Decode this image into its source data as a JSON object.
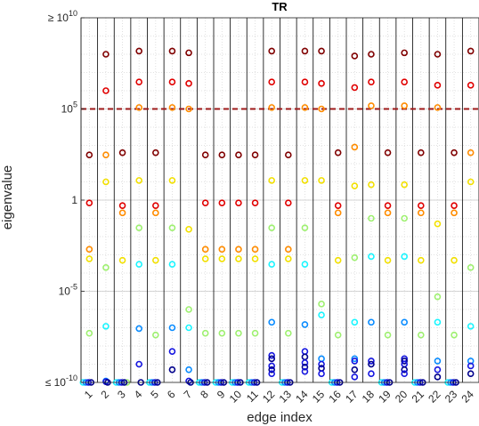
{
  "chart_data": {
    "type": "scatter",
    "title": "TR",
    "xlabel": "edge index",
    "ylabel": "eigenvalue",
    "y_scale": "log",
    "ylim": [
      1e-10,
      10000000000.0
    ],
    "y_ticks": [
      {
        "value": 10000000000.0,
        "prefix": "≥ 10",
        "exp": "10"
      },
      {
        "value": 100000.0,
        "prefix": "10",
        "exp": "5"
      },
      {
        "value": 1,
        "prefix": "1",
        "exp": ""
      },
      {
        "value": 1e-05,
        "prefix": "10",
        "exp": "-5"
      },
      {
        "value": 1e-10,
        "prefix": "≤ 10",
        "exp": "-10"
      }
    ],
    "categories": [
      "1",
      "2",
      "3",
      "4",
      "5",
      "6",
      "7",
      "8",
      "9",
      "10",
      "11",
      "12",
      "13",
      "14",
      "15",
      "16",
      "17",
      "18",
      "19",
      "20",
      "21",
      "22",
      "23",
      "24"
    ],
    "threshold": 100000.0,
    "grid": true,
    "colors": {
      "threshold_line": "#9e1a1a",
      "separator_line": "#000000",
      "grid_line": "#d9d9d9",
      "palette": [
        "#800000",
        "#e00000",
        "#ff8c00",
        "#f2e000",
        "#9ef070",
        "#19f5ff",
        "#0a8cff",
        "#1515e0",
        "#00008c"
      ]
    },
    "points": [
      {
        "edge": 1,
        "values": [
          {
            "v": 300.0,
            "c": 0
          },
          {
            "v": 0.7,
            "c": 1
          },
          {
            "v": 0.002,
            "c": 2
          },
          {
            "v": 0.0006,
            "c": 3
          },
          {
            "v": 5e-08,
            "c": 4
          },
          {
            "v": 1e-10,
            "c": 5
          },
          {
            "v": 1e-10,
            "c": 6
          },
          {
            "v": 1e-10,
            "c": 7
          },
          {
            "v": 1e-10,
            "c": 8
          }
        ]
      },
      {
        "edge": 2,
        "values": [
          {
            "v": 100000000.0,
            "c": 0
          },
          {
            "v": 1000000.0,
            "c": 1
          },
          {
            "v": 300.0,
            "c": 2
          },
          {
            "v": 10,
            "c": 3
          },
          {
            "v": 0.0002,
            "c": 4
          },
          {
            "v": 1.2e-07,
            "c": 5
          },
          {
            "v": 1.2e-10,
            "c": 6
          },
          {
            "v": 1.1e-10,
            "c": 7
          },
          {
            "v": 1e-10,
            "c": 8
          }
        ]
      },
      {
        "edge": 3,
        "values": [
          {
            "v": 400.0,
            "c": 0
          },
          {
            "v": 0.5,
            "c": 1
          },
          {
            "v": 0.2,
            "c": 2
          },
          {
            "v": 0.0005,
            "c": 3
          },
          {
            "v": 1e-10,
            "c": 4
          },
          {
            "v": 1e-10,
            "c": 5
          },
          {
            "v": 1e-10,
            "c": 6
          },
          {
            "v": 1e-10,
            "c": 7
          },
          {
            "v": 1e-10,
            "c": 8
          }
        ]
      },
      {
        "edge": 4,
        "values": [
          {
            "v": 150000000.0,
            "c": 0
          },
          {
            "v": 3000000.0,
            "c": 1
          },
          {
            "v": 120000.0,
            "c": 2
          },
          {
            "v": 12,
            "c": 3
          },
          {
            "v": 0.03,
            "c": 4
          },
          {
            "v": 0.0003,
            "c": 5
          },
          {
            "v": 9e-08,
            "c": 6
          },
          {
            "v": 1e-09,
            "c": 7
          },
          {
            "v": 1e-10,
            "c": 8
          }
        ]
      },
      {
        "edge": 5,
        "values": [
          {
            "v": 400.0,
            "c": 0
          },
          {
            "v": 0.5,
            "c": 1
          },
          {
            "v": 0.2,
            "c": 2
          },
          {
            "v": 0.0005,
            "c": 3
          },
          {
            "v": 4e-08,
            "c": 4
          },
          {
            "v": 1e-10,
            "c": 5
          },
          {
            "v": 1e-10,
            "c": 6
          },
          {
            "v": 1e-10,
            "c": 7
          },
          {
            "v": 1e-10,
            "c": 8
          }
        ]
      },
      {
        "edge": 6,
        "values": [
          {
            "v": 150000000.0,
            "c": 0
          },
          {
            "v": 3000000.0,
            "c": 1
          },
          {
            "v": 120000.0,
            "c": 2
          },
          {
            "v": 12,
            "c": 3
          },
          {
            "v": 0.03,
            "c": 4
          },
          {
            "v": 0.0003,
            "c": 5
          },
          {
            "v": 1e-07,
            "c": 6
          },
          {
            "v": 5e-09,
            "c": 7
          },
          {
            "v": 5e-10,
            "c": 8
          }
        ]
      },
      {
        "edge": 7,
        "values": [
          {
            "v": 120000000.0,
            "c": 0
          },
          {
            "v": 2500000.0,
            "c": 1
          },
          {
            "v": 100000.0,
            "c": 2
          },
          {
            "v": 0.025,
            "c": 3
          },
          {
            "v": 1e-06,
            "c": 4
          },
          {
            "v": 1e-07,
            "c": 5
          },
          {
            "v": 5e-10,
            "c": 6
          },
          {
            "v": 1.2e-10,
            "c": 7
          },
          {
            "v": 1e-10,
            "c": 8
          }
        ]
      },
      {
        "edge": 8,
        "values": [
          {
            "v": 300.0,
            "c": 0
          },
          {
            "v": 0.7,
            "c": 1
          },
          {
            "v": 0.002,
            "c": 2
          },
          {
            "v": 0.0006,
            "c": 3
          },
          {
            "v": 5e-08,
            "c": 4
          },
          {
            "v": 1e-10,
            "c": 5
          },
          {
            "v": 1e-10,
            "c": 6
          },
          {
            "v": 1e-10,
            "c": 7
          },
          {
            "v": 1e-10,
            "c": 8
          }
        ]
      },
      {
        "edge": 9,
        "values": [
          {
            "v": 300.0,
            "c": 0
          },
          {
            "v": 0.7,
            "c": 1
          },
          {
            "v": 0.002,
            "c": 2
          },
          {
            "v": 0.0006,
            "c": 3
          },
          {
            "v": 5e-08,
            "c": 4
          },
          {
            "v": 1e-10,
            "c": 5
          },
          {
            "v": 1e-10,
            "c": 6
          },
          {
            "v": 1e-10,
            "c": 7
          },
          {
            "v": 1e-10,
            "c": 8
          }
        ]
      },
      {
        "edge": 10,
        "values": [
          {
            "v": 300.0,
            "c": 0
          },
          {
            "v": 0.7,
            "c": 1
          },
          {
            "v": 0.002,
            "c": 2
          },
          {
            "v": 0.0006,
            "c": 3
          },
          {
            "v": 5e-08,
            "c": 4
          },
          {
            "v": 1e-10,
            "c": 5
          },
          {
            "v": 1e-10,
            "c": 6
          },
          {
            "v": 1e-10,
            "c": 7
          },
          {
            "v": 1e-10,
            "c": 8
          }
        ]
      },
      {
        "edge": 11,
        "values": [
          {
            "v": 300.0,
            "c": 0
          },
          {
            "v": 0.7,
            "c": 1
          },
          {
            "v": 0.002,
            "c": 2
          },
          {
            "v": 0.0006,
            "c": 3
          },
          {
            "v": 5e-08,
            "c": 4
          },
          {
            "v": 1e-10,
            "c": 5
          },
          {
            "v": 1e-10,
            "c": 6
          },
          {
            "v": 1e-10,
            "c": 7
          },
          {
            "v": 1e-10,
            "c": 8
          }
        ]
      },
      {
        "edge": 12,
        "values": [
          {
            "v": 150000000.0,
            "c": 0
          },
          {
            "v": 3000000.0,
            "c": 1
          },
          {
            "v": 120000.0,
            "c": 2
          },
          {
            "v": 12,
            "c": 3
          },
          {
            "v": 0.03,
            "c": 4
          },
          {
            "v": 0.0003,
            "c": 5
          },
          {
            "v": 2e-07,
            "c": 6
          },
          {
            "v": 3e-09,
            "c": 7
          },
          {
            "v": 2e-09,
            "c": 8
          },
          {
            "v": 8e-10,
            "c": 7
          },
          {
            "v": 5e-10,
            "c": 8
          },
          {
            "v": 3e-10,
            "c": 7
          }
        ]
      },
      {
        "edge": 13,
        "values": [
          {
            "v": 300.0,
            "c": 0
          },
          {
            "v": 0.7,
            "c": 1
          },
          {
            "v": 0.002,
            "c": 2
          },
          {
            "v": 0.0006,
            "c": 3
          },
          {
            "v": 5e-08,
            "c": 4
          },
          {
            "v": 1e-10,
            "c": 5
          },
          {
            "v": 1e-10,
            "c": 6
          },
          {
            "v": 1e-10,
            "c": 7
          },
          {
            "v": 1e-10,
            "c": 8
          }
        ]
      },
      {
        "edge": 14,
        "values": [
          {
            "v": 150000000.0,
            "c": 0
          },
          {
            "v": 3000000.0,
            "c": 1
          },
          {
            "v": 120000.0,
            "c": 2
          },
          {
            "v": 12,
            "c": 3
          },
          {
            "v": 0.03,
            "c": 4
          },
          {
            "v": 0.0003,
            "c": 5
          },
          {
            "v": 1.5e-07,
            "c": 6
          },
          {
            "v": 5e-09,
            "c": 7
          },
          {
            "v": 2.5e-09,
            "c": 8
          },
          {
            "v": 1.2e-09,
            "c": 7
          },
          {
            "v": 7e-10,
            "c": 8
          },
          {
            "v": 4e-10,
            "c": 7
          }
        ]
      },
      {
        "edge": 15,
        "values": [
          {
            "v": 150000000.0,
            "c": 0
          },
          {
            "v": 2500000.0,
            "c": 1
          },
          {
            "v": 100000.0,
            "c": 2
          },
          {
            "v": 12,
            "c": 3
          },
          {
            "v": 2e-06,
            "c": 4
          },
          {
            "v": 5e-07,
            "c": 5
          },
          {
            "v": 2e-09,
            "c": 6
          },
          {
            "v": 1e-09,
            "c": 7
          },
          {
            "v": 6e-10,
            "c": 8
          },
          {
            "v": 3e-10,
            "c": 7
          }
        ]
      },
      {
        "edge": 16,
        "values": [
          {
            "v": 400.0,
            "c": 0
          },
          {
            "v": 0.5,
            "c": 1
          },
          {
            "v": 0.2,
            "c": 2
          },
          {
            "v": 0.0005,
            "c": 3
          },
          {
            "v": 4e-08,
            "c": 4
          },
          {
            "v": 1e-10,
            "c": 5
          },
          {
            "v": 1e-10,
            "c": 6
          },
          {
            "v": 1e-10,
            "c": 7
          },
          {
            "v": 1e-10,
            "c": 8
          }
        ]
      },
      {
        "edge": 17,
        "values": [
          {
            "v": 80000000.0,
            "c": 0
          },
          {
            "v": 1500000.0,
            "c": 1
          },
          {
            "v": 800.0,
            "c": 2
          },
          {
            "v": 6,
            "c": 3
          },
          {
            "v": 0.0007,
            "c": 4
          },
          {
            "v": 2e-07,
            "c": 5
          },
          {
            "v": 2e-09,
            "c": 6
          },
          {
            "v": 1.5e-09,
            "c": 7
          },
          {
            "v": 5e-10,
            "c": 8
          },
          {
            "v": 2e-10,
            "c": 7
          }
        ]
      },
      {
        "edge": 18,
        "values": [
          {
            "v": 100000000.0,
            "c": 0
          },
          {
            "v": 3000000.0,
            "c": 1
          },
          {
            "v": 150000.0,
            "c": 2
          },
          {
            "v": 7,
            "c": 3
          },
          {
            "v": 0.1,
            "c": 4
          },
          {
            "v": 0.0008,
            "c": 5
          },
          {
            "v": 2e-07,
            "c": 6
          },
          {
            "v": 1.5e-09,
            "c": 7
          },
          {
            "v": 1e-09,
            "c": 8
          },
          {
            "v": 3e-10,
            "c": 7
          }
        ]
      },
      {
        "edge": 19,
        "values": [
          {
            "v": 400.0,
            "c": 0
          },
          {
            "v": 0.5,
            "c": 1
          },
          {
            "v": 0.2,
            "c": 2
          },
          {
            "v": 0.0005,
            "c": 3
          },
          {
            "v": 4e-08,
            "c": 4
          },
          {
            "v": 1e-10,
            "c": 5
          },
          {
            "v": 1e-10,
            "c": 6
          },
          {
            "v": 1e-10,
            "c": 7
          },
          {
            "v": 1e-10,
            "c": 8
          }
        ]
      },
      {
        "edge": 20,
        "values": [
          {
            "v": 120000000.0,
            "c": 0
          },
          {
            "v": 3000000.0,
            "c": 1
          },
          {
            "v": 150000.0,
            "c": 2
          },
          {
            "v": 7,
            "c": 3
          },
          {
            "v": 0.1,
            "c": 4
          },
          {
            "v": 0.0008,
            "c": 5
          },
          {
            "v": 2e-07,
            "c": 6
          },
          {
            "v": 2e-09,
            "c": 7
          },
          {
            "v": 1.5e-09,
            "c": 8
          },
          {
            "v": 1e-09,
            "c": 7
          },
          {
            "v": 5e-10,
            "c": 8
          },
          {
            "v": 3e-10,
            "c": 7
          }
        ]
      },
      {
        "edge": 21,
        "values": [
          {
            "v": 400.0,
            "c": 0
          },
          {
            "v": 0.5,
            "c": 1
          },
          {
            "v": 0.2,
            "c": 2
          },
          {
            "v": 0.0005,
            "c": 3
          },
          {
            "v": 4e-08,
            "c": 4
          },
          {
            "v": 1e-10,
            "c": 5
          },
          {
            "v": 1e-10,
            "c": 6
          },
          {
            "v": 1e-10,
            "c": 7
          },
          {
            "v": 1e-10,
            "c": 8
          }
        ]
      },
      {
        "edge": 22,
        "values": [
          {
            "v": 100000000.0,
            "c": 0
          },
          {
            "v": 2000000.0,
            "c": 1
          },
          {
            "v": 120000.0,
            "c": 2
          },
          {
            "v": 0.05,
            "c": 3
          },
          {
            "v": 5e-06,
            "c": 4
          },
          {
            "v": 2e-07,
            "c": 5
          },
          {
            "v": 1.5e-09,
            "c": 6
          },
          {
            "v": 5e-10,
            "c": 7
          },
          {
            "v": 2e-10,
            "c": 8
          }
        ]
      },
      {
        "edge": 23,
        "values": [
          {
            "v": 400.0,
            "c": 0
          },
          {
            "v": 0.5,
            "c": 1
          },
          {
            "v": 0.2,
            "c": 2
          },
          {
            "v": 0.0005,
            "c": 3
          },
          {
            "v": 4e-08,
            "c": 4
          },
          {
            "v": 1e-10,
            "c": 5
          },
          {
            "v": 1e-10,
            "c": 6
          },
          {
            "v": 1e-10,
            "c": 7
          },
          {
            "v": 1e-10,
            "c": 8
          }
        ]
      },
      {
        "edge": 24,
        "values": [
          {
            "v": 150000000.0,
            "c": 0
          },
          {
            "v": 2000000.0,
            "c": 1
          },
          {
            "v": 400.0,
            "c": 2
          },
          {
            "v": 10,
            "c": 3
          },
          {
            "v": 0.0002,
            "c": 4
          },
          {
            "v": 1.2e-07,
            "c": 5
          },
          {
            "v": 1.5e-09,
            "c": 6
          },
          {
            "v": 8e-10,
            "c": 7
          },
          {
            "v": 3e-10,
            "c": 8
          }
        ]
      }
    ]
  }
}
